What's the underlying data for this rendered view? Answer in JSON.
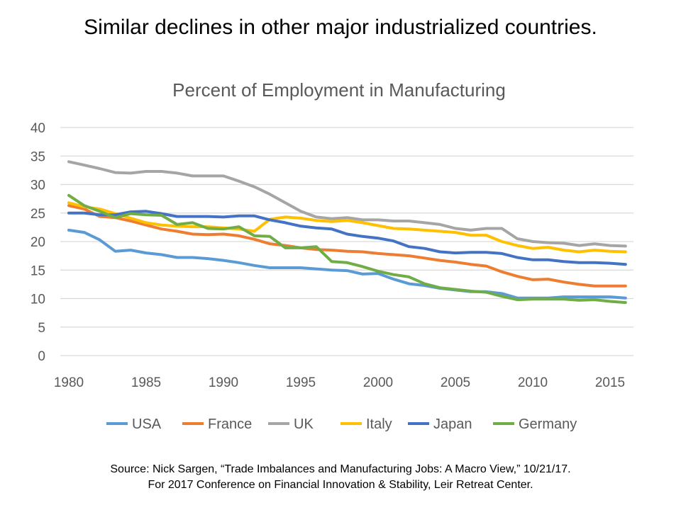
{
  "slide": {
    "title": "Similar declines in other major industrialized  countries.",
    "source_line1": "Source:  Nick Sargen, “Trade Imbalances and Manufacturing Jobs: A Macro View,” 10/21/17.",
    "source_line2": "For 2017 Conference  on Financial Innovation & Stability, Leir Retreat Center."
  },
  "chart_data": {
    "type": "line",
    "title": "Percent of Employment in Manufacturing",
    "xlabel": "",
    "ylabel": "",
    "x": [
      1980,
      1981,
      1982,
      1983,
      1984,
      1985,
      1986,
      1987,
      1988,
      1989,
      1990,
      1991,
      1992,
      1993,
      1994,
      1995,
      1996,
      1997,
      1998,
      1999,
      2000,
      2001,
      2002,
      2003,
      2004,
      2005,
      2006,
      2007,
      2008,
      2009,
      2010,
      2011,
      2012,
      2013,
      2014,
      2015,
      2016
    ],
    "xticks": [
      "1980",
      "1985",
      "1990",
      "1995",
      "2000",
      "2005",
      "2010",
      "2015"
    ],
    "yticks": [
      "0",
      "5",
      "10",
      "15",
      "20",
      "25",
      "30",
      "35",
      "40"
    ],
    "ylim": [
      0,
      40
    ],
    "grid": true,
    "legend_position": "bottom",
    "series": [
      {
        "name": "USA",
        "color": "#5b9bd5",
        "values": [
          22,
          21.6,
          20.3,
          18.3,
          18.5,
          18,
          17.7,
          17.2,
          17.2,
          17,
          16.7,
          16.3,
          15.8,
          15.4,
          15.4,
          15.4,
          15.2,
          15,
          14.9,
          14.3,
          14.4,
          13.4,
          12.6,
          12.3,
          11.8,
          11.5,
          11.2,
          11.2,
          10.9,
          10.1,
          10.1,
          10.1,
          10.3,
          10.3,
          10.3,
          10.3,
          10.1
        ]
      },
      {
        "name": "France",
        "color": "#ed7d31",
        "values": [
          26.3,
          25.7,
          24.4,
          24.2,
          23.6,
          22.9,
          22.2,
          21.8,
          21.3,
          21.2,
          21.3,
          21,
          20.4,
          19.6,
          19.3,
          18.9,
          18.6,
          18.5,
          18.3,
          18.2,
          17.9,
          17.7,
          17.5,
          17.1,
          16.7,
          16.4,
          16,
          15.7,
          14.7,
          13.9,
          13.3,
          13.4,
          12.9,
          12.5,
          12.2,
          12.2,
          12.2
        ]
      },
      {
        "name": "UK",
        "color": "#a5a5a5",
        "values": [
          34,
          33.4,
          32.8,
          32.1,
          32,
          32.3,
          32.3,
          32,
          31.5,
          31.5,
          31.5,
          30.6,
          29.6,
          28.3,
          26.8,
          25.3,
          24.3,
          24,
          24.2,
          23.8,
          23.8,
          23.6,
          23.6,
          23.3,
          23,
          22.3,
          22,
          22.3,
          22.3,
          20.5,
          20,
          19.8,
          19.7,
          19.3,
          19.6,
          19.3,
          19.2
        ]
      },
      {
        "name": "Italy",
        "color": "#ffc000",
        "values": [
          26.8,
          26.1,
          25.7,
          24.9,
          24.1,
          23.3,
          22.9,
          22.7,
          22.6,
          22.6,
          22.4,
          22.2,
          21.8,
          23.9,
          24.3,
          24.1,
          23.7,
          23.5,
          23.7,
          23.3,
          22.8,
          22.3,
          22.2,
          22,
          21.8,
          21.6,
          21.1,
          21.1,
          20,
          19.3,
          18.8,
          19,
          18.5,
          18.2,
          18.5,
          18.3,
          18.2
        ]
      },
      {
        "name": "Japan",
        "color": "#4472c4",
        "values": [
          25,
          25,
          24.7,
          24.7,
          25.2,
          25.3,
          24.9,
          24.4,
          24.4,
          24.4,
          24.3,
          24.5,
          24.5,
          23.8,
          23.3,
          22.7,
          22.4,
          22.2,
          21.3,
          20.9,
          20.6,
          20.1,
          19.1,
          18.8,
          18.2,
          18,
          18.1,
          18.1,
          17.9,
          17.2,
          16.8,
          16.8,
          16.5,
          16.3,
          16.3,
          16.2,
          16
        ]
      },
      {
        "name": "Germany",
        "color": "#70ad47",
        "values": [
          28.1,
          26.3,
          25.3,
          24.2,
          24.9,
          24.7,
          24.6,
          23,
          23.3,
          22.3,
          22.2,
          22.6,
          21,
          20.9,
          18.9,
          18.9,
          19.1,
          16.5,
          16.3,
          15.6,
          14.8,
          14.2,
          13.8,
          12.6,
          11.9,
          11.6,
          11.3,
          11.1,
          10.4,
          9.8,
          9.9,
          9.9,
          9.9,
          9.7,
          9.8,
          9.5,
          9.3
        ]
      }
    ]
  }
}
